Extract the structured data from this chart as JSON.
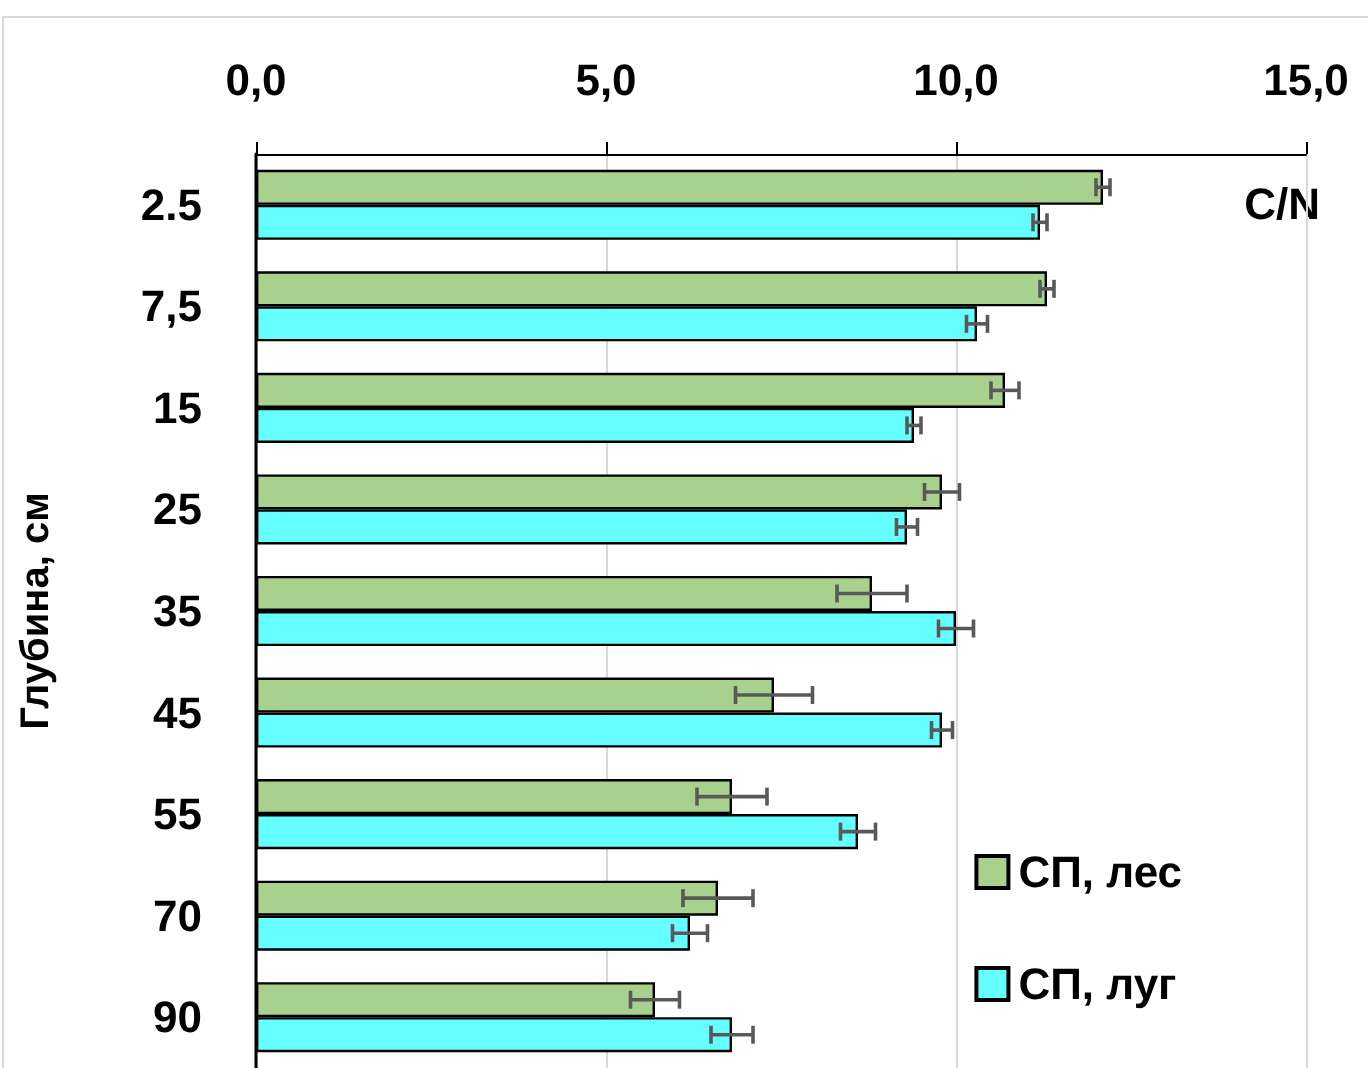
{
  "chart_data": {
    "type": "bar",
    "orientation": "horizontal",
    "ylabel": "Глубина, см",
    "annotations": [
      "C/N"
    ],
    "categories": [
      "2.5",
      "7,5",
      "15",
      "25",
      "35",
      "45",
      "55",
      "70",
      "90"
    ],
    "series": [
      {
        "name": "СП, лес",
        "color": "#a9d18e",
        "values": [
          12.1,
          11.3,
          10.7,
          9.8,
          8.8,
          7.4,
          6.8,
          6.6,
          5.7
        ],
        "errors": [
          0.1,
          0.1,
          0.2,
          0.25,
          0.5,
          0.55,
          0.5,
          0.5,
          0.35
        ]
      },
      {
        "name": "СП, луг",
        "color": "#66ffff",
        "values": [
          11.2,
          10.3,
          9.4,
          9.3,
          10.0,
          9.8,
          8.6,
          6.2,
          6.8
        ],
        "errors": [
          0.1,
          0.15,
          0.1,
          0.15,
          0.25,
          0.15,
          0.25,
          0.25,
          0.3
        ]
      }
    ],
    "xlim": [
      0,
      15
    ],
    "xticks": [
      {
        "value": 0,
        "label": "0,0"
      },
      {
        "value": 5,
        "label": "5,0"
      },
      {
        "value": 10,
        "label": "10,0"
      },
      {
        "value": 15,
        "label": "15,0"
      }
    ],
    "grid": "x",
    "legend": "bottom right"
  }
}
